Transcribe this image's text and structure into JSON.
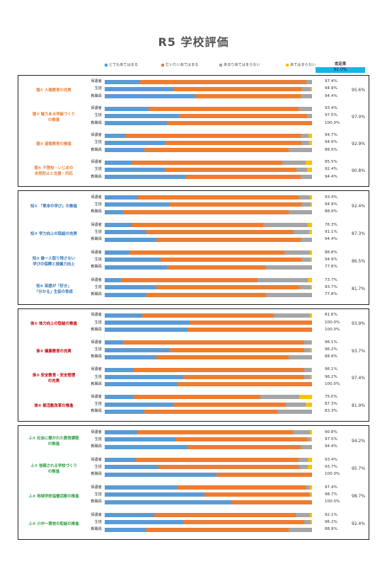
{
  "page_title": "R5 学校評価",
  "rate_header": "肯定率",
  "rate_total": "92.0%",
  "legend": [
    {
      "label": "とてもあてはまる",
      "color": "#5b9bd5"
    },
    {
      "label": "だいたいあてはまる",
      "color": "#ed7d31"
    },
    {
      "label": "あまりあてはまらない",
      "color": "#a5a5a5"
    },
    {
      "label": "あてはまらない",
      "color": "#ffc000"
    }
  ],
  "chart_data": {
    "type": "bar",
    "orientation": "horizontal-stacked-100",
    "xlim": [
      0,
      100
    ],
    "series_names": [
      "とてもあてはまる",
      "だいたいあてはまる",
      "あまりあてはまらない",
      "あてはまらない"
    ],
    "sections": [
      {
        "categories": [
          {
            "label_lines": [
              "徳① 人権教育の充実"
            ],
            "color": "#ed7d31",
            "total": "95.6%",
            "rows": [
              {
                "group": "保護者",
                "values": [
                  17,
                  80.4,
                  2.6,
                  0
                ],
                "rate": "97.4%"
              },
              {
                "group": "生徒",
                "values": [
                  33,
                  61.9,
                  4.5,
                  0.6
                ],
                "rate": "94.9%"
              },
              {
                "group": "教職員",
                "values": [
                  44,
                  50.4,
                  5.6,
                  0
                ],
                "rate": "94.4%"
              }
            ]
          },
          {
            "label_lines": [
              "徳② 魅力ある学級づくり",
              "の推進"
            ],
            "color": "#ed7d31",
            "total": "97.0%",
            "rows": [
              {
                "group": "保護者",
                "values": [
                  21,
                  72.4,
                  6.6,
                  0
                ],
                "rate": "93.4%"
              },
              {
                "group": "生徒",
                "values": [
                  36,
                  61.5,
                  2.5,
                  0
                ],
                "rate": "97.5%"
              },
              {
                "group": "教職員",
                "values": [
                  30,
                  70,
                  0,
                  0
                ],
                "rate": "100.0%"
              }
            ]
          },
          {
            "label_lines": [
              "徳③ 道徳教育の推進"
            ],
            "color": "#ed7d31",
            "total": "92.9%",
            "rows": [
              {
                "group": "保護者",
                "values": [
                  10,
                  84.7,
                  3.5,
                  1.8
                ],
                "rate": "94.7%"
              },
              {
                "group": "生徒",
                "values": [
                  29,
                  65.9,
                  3.8,
                  1.3
                ],
                "rate": "94.9%"
              },
              {
                "group": "教職員",
                "values": [
                  19,
                  69.9,
                  11.1,
                  0
                ],
                "rate": "88.9%"
              }
            ]
          },
          {
            "label_lines": [
              "徳④ 不登校・いじめの",
              "未然防止と支援・対応"
            ],
            "color": "#ed7d31",
            "total": "90.8%",
            "rows": [
              {
                "group": "保護者",
                "values": [
                  13,
                  72.5,
                  11.5,
                  3
                ],
                "rate": "85.5%"
              },
              {
                "group": "生徒",
                "values": [
                  29,
                  63.4,
                  5.1,
                  2.5
                ],
                "rate": "92.4%"
              },
              {
                "group": "教職員",
                "values": [
                  39,
                  55.4,
                  5.6,
                  0
                ],
                "rate": "94.4%"
              }
            ]
          }
        ]
      },
      {
        "categories": [
          {
            "label_lines": [
              "知① 「熊本の学び」の推進"
            ],
            "color": "#2e75b6",
            "total": "92.4%",
            "rows": [
              {
                "group": "保護者",
                "values": [
                  16,
                  77.4,
                  5.6,
                  1
                ],
                "rate": "93.4%"
              },
              {
                "group": "生徒",
                "values": [
                  31,
                  63.9,
                  4.5,
                  0.6
                ],
                "rate": "94.9%"
              },
              {
                "group": "教職員",
                "values": [
                  9,
                  79.9,
                  11.1,
                  0
                ],
                "rate": "88.9%"
              }
            ]
          },
          {
            "label_lines": [
              "知② 学力向上の取組の充実"
            ],
            "color": "#2e75b6",
            "total": "87.3%",
            "rows": [
              {
                "group": "保護者",
                "values": [
                  13,
                  63.3,
                  21.7,
                  2
                ],
                "rate": "76.3%"
              },
              {
                "group": "生徒",
                "values": [
                  20,
                  71.1,
                  7.6,
                  1.3
                ],
                "rate": "91.1%"
              },
              {
                "group": "教職員",
                "values": [
                  25,
                  69.4,
                  5.6,
                  0
                ],
                "rate": "94.4%"
              }
            ]
          },
          {
            "label_lines": [
              "知③ 誰一人取り残さない",
              "学びの保障と授業力向上"
            ],
            "color": "#2e75b6",
            "total": "86.5%",
            "rows": [
              {
                "group": "保護者",
                "values": [
                  12,
                  74.8,
                  12.2,
                  1
                ],
                "rate": "86.8%"
              },
              {
                "group": "生徒",
                "values": [
                  27,
                  67.9,
                  4.5,
                  0.6
                ],
                "rate": "94.9%"
              },
              {
                "group": "教職員",
                "values": [
                  30,
                  47.8,
                  22.2,
                  0
                ],
                "rate": "77.8%"
              }
            ]
          },
          {
            "label_lines": [
              "知④ 英語が「好き」",
              "「分かる」生徒の育成"
            ],
            "color": "#2e75b6",
            "total": "81.7%",
            "rows": [
              {
                "group": "保護者",
                "values": [
                  8,
                  65.7,
                  24.3,
                  2
                ],
                "rate": "73.7%"
              },
              {
                "group": "生徒",
                "values": [
                  25,
                  68.7,
                  5.7,
                  0.6
                ],
                "rate": "93.7%"
              },
              {
                "group": "教職員",
                "values": [
                  20,
                  57.8,
                  22.2,
                  0
                ],
                "rate": "77.8%"
              }
            ]
          }
        ]
      },
      {
        "categories": [
          {
            "label_lines": [
              "体① 体力向上の取組の推進"
            ],
            "color": "#c00000",
            "total": "93.9%",
            "rows": [
              {
                "group": "保護者",
                "values": [
                  18,
                  63.6,
                  17.4,
                  1
                ],
                "rate": "81.6%"
              },
              {
                "group": "生徒",
                "values": [
                  41,
                  59,
                  0,
                  0
                ],
                "rate": "100.0%"
              },
              {
                "group": "教職員",
                "values": [
                  40,
                  60,
                  0,
                  0
                ],
                "rate": "100.0%"
              }
            ]
          },
          {
            "label_lines": [
              "体② 健康教育の充実"
            ],
            "color": "#c00000",
            "total": "93.7%",
            "rows": [
              {
                "group": "保護者",
                "values": [
                  9,
                  87.1,
                  3.4,
                  0.5
                ],
                "rate": "96.1%"
              },
              {
                "group": "生徒",
                "values": [
                  31,
                  65.2,
                  3.2,
                  0.6
                ],
                "rate": "96.2%"
              },
              {
                "group": "教職員",
                "values": [
                  25,
                  63.9,
                  11.1,
                  0
                ],
                "rate": "88.9%"
              }
            ]
          },
          {
            "label_lines": [
              "体③ 安全教育・安全管理",
              "の充実"
            ],
            "color": "#c00000",
            "total": "97.4%",
            "rows": [
              {
                "group": "保護者",
                "values": [
                  14,
                  82.1,
                  3.4,
                  0.5
                ],
                "rate": "96.1%"
              },
              {
                "group": "生徒",
                "values": [
                  38,
                  58.2,
                  3.2,
                  0.6
                ],
                "rate": "96.2%"
              },
              {
                "group": "教職員",
                "values": [
                  35,
                  65,
                  0,
                  0
                ],
                "rate": "100.0%"
              }
            ]
          },
          {
            "label_lines": [
              "体④ 部活動改革の推進"
            ],
            "color": "#c00000",
            "total": "81.9%",
            "rows": [
              {
                "group": "保護者",
                "values": [
                  14,
                  61,
                  19,
                  6
                ],
                "rate": "75.0%"
              },
              {
                "group": "生徒",
                "values": [
                  33,
                  54.3,
                  9.5,
                  3.2
                ],
                "rate": "87.3%"
              },
              {
                "group": "教職員",
                "values": [
                  19,
                  64.3,
                  16.7,
                  0
                ],
                "rate": "83.3%"
              }
            ]
          }
        ]
      },
      {
        "categories": [
          {
            "label_lines": [
              "ふ① 社会に開かれた教育課程",
              "の推進"
            ],
            "color": "#2a9d40",
            "total": "94.2%",
            "rows": [
              {
                "group": "保護者",
                "values": [
                  16,
                  74.8,
                  8.2,
                  1
                ],
                "rate": "90.8%"
              },
              {
                "group": "生徒",
                "values": [
                  34,
                  63.5,
                  1.9,
                  0.6
                ],
                "rate": "97.5%"
              },
              {
                "group": "教職員",
                "values": [
                  40,
                  54.4,
                  5.6,
                  0
                ],
                "rate": "94.4%"
              }
            ]
          },
          {
            "label_lines": [
              "ふ② 信頼される学校づくり",
              "の推進"
            ],
            "color": "#2a9d40",
            "total": "95.7%",
            "rows": [
              {
                "group": "保護者",
                "values": [
                  15,
                  78.4,
                  4.6,
                  2
                ],
                "rate": "93.4%"
              },
              {
                "group": "生徒",
                "values": [
                  26,
                  67.7,
                  4.4,
                  1.9
                ],
                "rate": "93.7%"
              },
              {
                "group": "教職員",
                "values": [
                  54,
                  46,
                  0,
                  0
                ],
                "rate": "100.0%"
              }
            ]
          },
          {
            "label_lines": [
              "ふ③ 地域学校協働活動の推進"
            ],
            "color": "#2a9d40",
            "total": "98.7%",
            "rows": [
              {
                "group": "保護者",
                "values": [
                  35,
                  62.4,
                  1.6,
                  1
                ],
                "rate": "97.4%"
              },
              {
                "group": "生徒",
                "values": [
                  48,
                  50.7,
                  0.7,
                  0.6
                ],
                "rate": "98.7%"
              },
              {
                "group": "教職員",
                "values": [
                  61,
                  39,
                  0,
                  0
                ],
                "rate": "100.0%"
              }
            ]
          },
          {
            "label_lines": [
              "ふ④ 小中一貫校の取組の推進"
            ],
            "color": "#2a9d40",
            "total": "92.4%",
            "rows": [
              {
                "group": "保護者",
                "values": [
                  24,
                  68.1,
                  6.9,
                  1
                ],
                "rate": "92.1%"
              },
              {
                "group": "生徒",
                "values": [
                  38,
                  58.2,
                  3.2,
                  0.6
                ],
                "rate": "96.2%"
              },
              {
                "group": "教職員",
                "values": [
                  20,
                  68.9,
                  11.1,
                  0
                ],
                "rate": "88.9%"
              }
            ]
          }
        ]
      }
    ]
  }
}
